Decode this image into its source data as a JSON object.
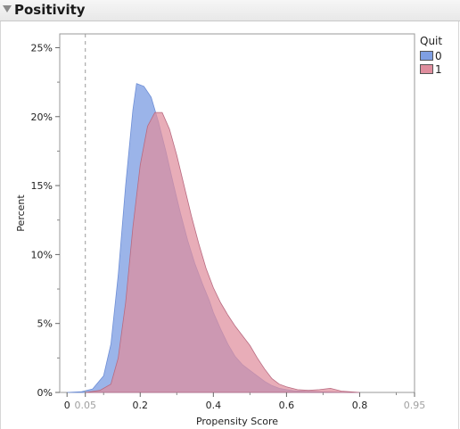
{
  "report": {
    "title": "Positivity"
  },
  "chart_data": {
    "type": "area",
    "title": "",
    "xlabel": "Propensity Score",
    "ylabel": "Percent",
    "xlim": [
      -0.02,
      0.95
    ],
    "ylim": [
      0,
      0.26
    ],
    "x_ticks": [
      {
        "value": 0,
        "label": "0"
      },
      {
        "value": 0.05,
        "label": "0.05",
        "muted": true
      },
      {
        "value": 0.2,
        "label": "0.2"
      },
      {
        "value": 0.4,
        "label": "0.4"
      },
      {
        "value": 0.6,
        "label": "0.6"
      },
      {
        "value": 0.8,
        "label": "0.8"
      },
      {
        "value": 0.95,
        "label": "0.95",
        "muted": true
      }
    ],
    "y_ticks": [
      {
        "value": 0,
        "label": "0%"
      },
      {
        "value": 0.05,
        "label": "5%"
      },
      {
        "value": 0.1,
        "label": "10%"
      },
      {
        "value": 0.15,
        "label": "15%"
      },
      {
        "value": 0.2,
        "label": "20%"
      },
      {
        "value": 0.25,
        "label": "25%"
      }
    ],
    "reference_lines": [
      {
        "x": 0.05,
        "style": "dashed"
      }
    ],
    "grid": false,
    "legend": {
      "title": "Quit",
      "position": "right"
    },
    "series": [
      {
        "name": "0",
        "color": "#7f9fe3",
        "x": [
          0.0,
          0.04,
          0.07,
          0.1,
          0.12,
          0.14,
          0.16,
          0.18,
          0.19,
          0.21,
          0.23,
          0.25,
          0.27,
          0.29,
          0.31,
          0.33,
          0.35,
          0.37,
          0.39,
          0.4,
          0.42,
          0.44,
          0.46,
          0.48,
          0.5,
          0.52,
          0.54,
          0.56,
          0.58,
          0.6,
          0.62,
          0.65,
          0.7,
          0.75,
          0.8
        ],
        "y": [
          0.0,
          0.0005,
          0.0025,
          0.012,
          0.035,
          0.085,
          0.15,
          0.205,
          0.224,
          0.222,
          0.214,
          0.196,
          0.175,
          0.152,
          0.13,
          0.11,
          0.093,
          0.079,
          0.066,
          0.058,
          0.046,
          0.035,
          0.026,
          0.02,
          0.016,
          0.012,
          0.008,
          0.005,
          0.003,
          0.002,
          0.0012,
          0.0008,
          0.0004,
          0.0001,
          0.0
        ]
      },
      {
        "name": "1",
        "color": "#df8d9d",
        "x": [
          0.05,
          0.09,
          0.12,
          0.14,
          0.16,
          0.18,
          0.2,
          0.22,
          0.24,
          0.26,
          0.28,
          0.3,
          0.32,
          0.34,
          0.36,
          0.38,
          0.4,
          0.42,
          0.44,
          0.46,
          0.48,
          0.5,
          0.52,
          0.54,
          0.56,
          0.58,
          0.6,
          0.63,
          0.66,
          0.69,
          0.72,
          0.75,
          0.8
        ],
        "y": [
          0.0,
          0.0015,
          0.006,
          0.025,
          0.065,
          0.12,
          0.165,
          0.193,
          0.203,
          0.203,
          0.191,
          0.172,
          0.15,
          0.128,
          0.108,
          0.09,
          0.076,
          0.065,
          0.056,
          0.048,
          0.041,
          0.034,
          0.025,
          0.017,
          0.01,
          0.006,
          0.004,
          0.002,
          0.0015,
          0.002,
          0.003,
          0.001,
          0.0
        ]
      }
    ]
  }
}
